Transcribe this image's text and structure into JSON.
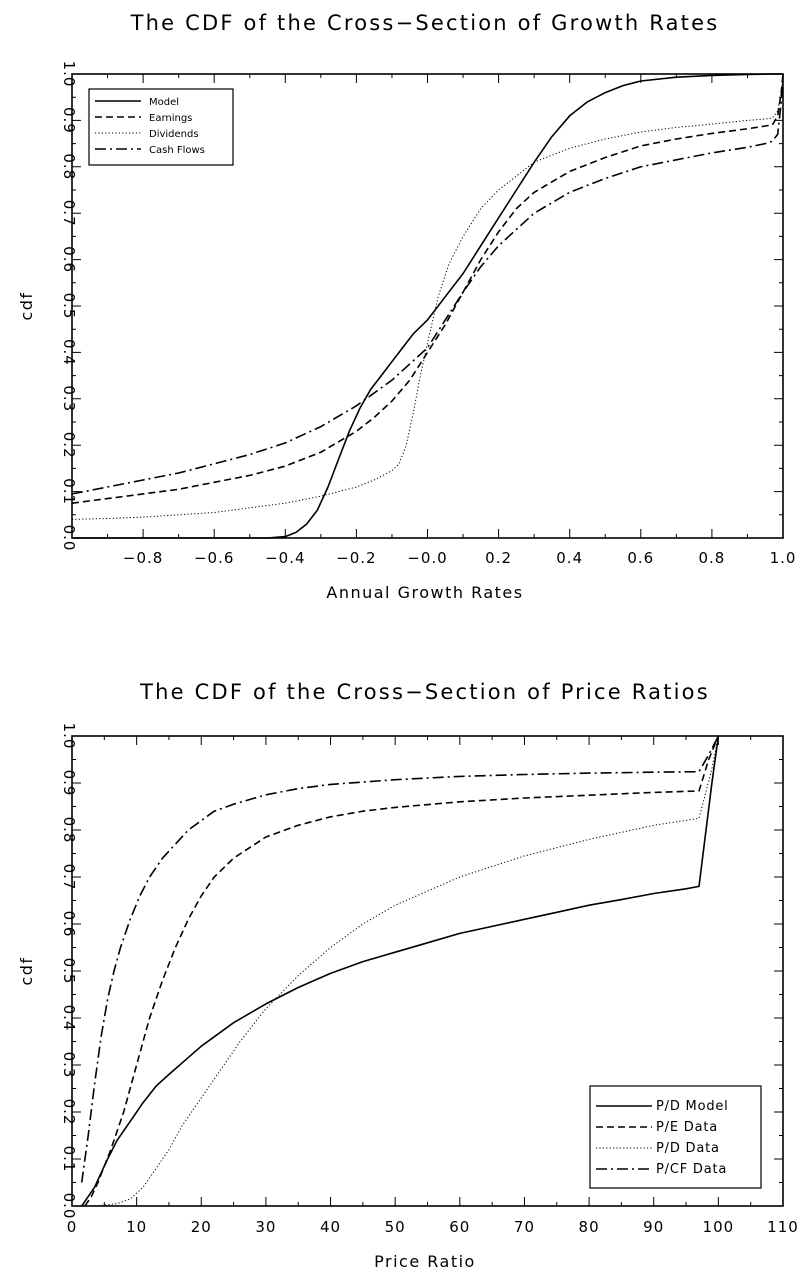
{
  "chart_data": [
    {
      "type": "line",
      "title": "The CDF of the Cross−Section of Growth Rates",
      "xlabel": "Annual Growth Rates",
      "ylabel": "cdf",
      "xlim": [
        -1.0,
        1.0
      ],
      "ylim": [
        0.0,
        1.0
      ],
      "xticks": [
        -0.8,
        -0.6,
        -0.4,
        -0.2,
        0.0,
        0.2,
        0.4,
        0.6,
        0.8,
        1.0
      ],
      "xtick_labels": [
        "−0.8",
        "−0.6",
        "−0.4",
        "−0.2",
        "−0.0",
        "0.2",
        "0.4",
        "0.6",
        "0.8",
        "1.0"
      ],
      "yticks": [
        0.0,
        0.1,
        0.2,
        0.3,
        0.4,
        0.5,
        0.6,
        0.7,
        0.8,
        0.9,
        1.0
      ],
      "ytick_labels": [
        "0.0",
        "0.1",
        "0.2",
        "0.3",
        "0.4",
        "0.5",
        "0.6",
        "0.7",
        "0.8",
        "0.9",
        "1.0"
      ],
      "grid": false,
      "legend": "top-left",
      "series": [
        {
          "name": "Model",
          "style": "solid",
          "x": [
            -1.0,
            -0.9,
            -0.8,
            -0.7,
            -0.6,
            -0.5,
            -0.45,
            -0.4,
            -0.37,
            -0.34,
            -0.31,
            -0.28,
            -0.25,
            -0.22,
            -0.19,
            -0.16,
            -0.13,
            -0.1,
            -0.07,
            -0.04,
            0.0,
            0.05,
            0.1,
            0.15,
            0.2,
            0.25,
            0.3,
            0.35,
            0.4,
            0.45,
            0.5,
            0.55,
            0.6,
            0.7,
            0.8,
            0.9,
            0.97,
            1.0
          ],
          "y": [
            0.0,
            0.0,
            0.0,
            0.0,
            0.0,
            0.0,
            0.0,
            0.003,
            0.012,
            0.03,
            0.06,
            0.11,
            0.17,
            0.23,
            0.28,
            0.32,
            0.35,
            0.38,
            0.41,
            0.44,
            0.47,
            0.52,
            0.57,
            0.63,
            0.69,
            0.75,
            0.81,
            0.865,
            0.91,
            0.94,
            0.96,
            0.975,
            0.985,
            0.993,
            0.997,
            0.999,
            1.0,
            1.0
          ]
        },
        {
          "name": "Earnings",
          "style": "dashed",
          "x": [
            -1.0,
            -0.9,
            -0.8,
            -0.7,
            -0.6,
            -0.5,
            -0.4,
            -0.3,
            -0.2,
            -0.15,
            -0.1,
            -0.05,
            0.0,
            0.05,
            0.1,
            0.15,
            0.2,
            0.25,
            0.3,
            0.4,
            0.5,
            0.6,
            0.7,
            0.8,
            0.9,
            0.95,
            0.97,
            0.985,
            0.995,
            1.0
          ],
          "y": [
            0.075,
            0.085,
            0.095,
            0.105,
            0.12,
            0.135,
            0.155,
            0.185,
            0.23,
            0.26,
            0.295,
            0.34,
            0.4,
            0.46,
            0.53,
            0.6,
            0.66,
            0.71,
            0.745,
            0.79,
            0.82,
            0.845,
            0.86,
            0.872,
            0.882,
            0.888,
            0.89,
            0.91,
            0.96,
            1.0
          ]
        },
        {
          "name": "Dividends",
          "style": "dotted",
          "x": [
            -1.0,
            -0.9,
            -0.8,
            -0.7,
            -0.6,
            -0.5,
            -0.4,
            -0.3,
            -0.2,
            -0.15,
            -0.1,
            -0.08,
            -0.06,
            -0.04,
            -0.02,
            0.0,
            0.03,
            0.06,
            0.1,
            0.15,
            0.2,
            0.25,
            0.3,
            0.4,
            0.5,
            0.6,
            0.7,
            0.8,
            0.9,
            0.95,
            0.97,
            0.985,
            0.995,
            1.0
          ],
          "y": [
            0.04,
            0.042,
            0.045,
            0.05,
            0.055,
            0.065,
            0.075,
            0.09,
            0.11,
            0.125,
            0.145,
            0.16,
            0.2,
            0.27,
            0.35,
            0.42,
            0.52,
            0.59,
            0.65,
            0.71,
            0.75,
            0.78,
            0.81,
            0.84,
            0.86,
            0.875,
            0.885,
            0.892,
            0.9,
            0.903,
            0.905,
            0.92,
            0.96,
            1.0
          ]
        },
        {
          "name": "Cash Flows",
          "style": "dashdot",
          "x": [
            -1.0,
            -0.9,
            -0.8,
            -0.7,
            -0.6,
            -0.5,
            -0.4,
            -0.3,
            -0.2,
            -0.1,
            0.0,
            0.05,
            0.1,
            0.15,
            0.2,
            0.25,
            0.3,
            0.4,
            0.5,
            0.6,
            0.7,
            0.8,
            0.9,
            0.95,
            0.97,
            0.985,
            0.995,
            1.0
          ],
          "y": [
            0.095,
            0.11,
            0.125,
            0.14,
            0.16,
            0.18,
            0.205,
            0.24,
            0.285,
            0.34,
            0.41,
            0.47,
            0.53,
            0.585,
            0.63,
            0.665,
            0.7,
            0.745,
            0.775,
            0.8,
            0.815,
            0.83,
            0.842,
            0.85,
            0.855,
            0.87,
            0.94,
            1.0
          ]
        }
      ]
    },
    {
      "type": "line",
      "title": "The CDF of the Cross−Section of Price Ratios",
      "xlabel": "Price Ratio",
      "ylabel": "cdf",
      "xlim": [
        0,
        110
      ],
      "ylim": [
        0.0,
        1.0
      ],
      "xticks": [
        0,
        10,
        20,
        30,
        40,
        50,
        60,
        70,
        80,
        90,
        100,
        110
      ],
      "xtick_labels": [
        "0",
        "10",
        "20",
        "30",
        "40",
        "50",
        "60",
        "70",
        "80",
        "90",
        "100",
        "110"
      ],
      "yticks": [
        0.0,
        0.1,
        0.2,
        0.3,
        0.4,
        0.5,
        0.6,
        0.7,
        0.8,
        0.9,
        1.0
      ],
      "ytick_labels": [
        "0.0",
        "0.1",
        "0.2",
        "0.3",
        "0.4",
        "0.5",
        "0.6",
        "0.7",
        "0.8",
        "0.9",
        "1.0"
      ],
      "grid": false,
      "legend": "bottom-right",
      "series": [
        {
          "name": "P/D Model",
          "style": "solid",
          "x": [
            1.5,
            2.5,
            3.5,
            4.5,
            5.5,
            7,
            9,
            11,
            13,
            15,
            17.5,
            20,
            25,
            30,
            35,
            40,
            45,
            50,
            55,
            60,
            65,
            70,
            75,
            80,
            85,
            90,
            95,
            97,
            99,
            100
          ],
          "y": [
            0.0,
            0.02,
            0.04,
            0.07,
            0.1,
            0.14,
            0.18,
            0.22,
            0.255,
            0.28,
            0.31,
            0.34,
            0.39,
            0.43,
            0.465,
            0.495,
            0.52,
            0.54,
            0.56,
            0.58,
            0.595,
            0.61,
            0.625,
            0.64,
            0.652,
            0.665,
            0.675,
            0.68,
            0.9,
            1.0
          ]
        },
        {
          "name": "P/E Data",
          "style": "dashed",
          "x": [
            2,
            3,
            4,
            6,
            8,
            10,
            12,
            14,
            16,
            18,
            20,
            22,
            25,
            30,
            35,
            40,
            45,
            50,
            60,
            70,
            80,
            90,
            97,
            98.5,
            100
          ],
          "y": [
            0.0,
            0.02,
            0.05,
            0.12,
            0.2,
            0.3,
            0.4,
            0.48,
            0.55,
            0.61,
            0.66,
            0.7,
            0.74,
            0.785,
            0.81,
            0.828,
            0.84,
            0.848,
            0.86,
            0.868,
            0.874,
            0.88,
            0.883,
            0.95,
            1.0
          ]
        },
        {
          "name": "P/D Data",
          "style": "dotted",
          "x": [
            3,
            5,
            7,
            9,
            11,
            13,
            15,
            17,
            20,
            23,
            26,
            30,
            35,
            40,
            45,
            50,
            60,
            70,
            80,
            90,
            97,
            99,
            100
          ],
          "y": [
            0.0,
            0.002,
            0.005,
            0.015,
            0.04,
            0.08,
            0.12,
            0.17,
            0.23,
            0.29,
            0.35,
            0.42,
            0.49,
            0.55,
            0.6,
            0.64,
            0.7,
            0.745,
            0.78,
            0.81,
            0.825,
            0.93,
            1.0
          ]
        },
        {
          "name": "P/CF Data",
          "style": "dashdot",
          "x": [
            1.5,
            2.5,
            3.5,
            4.5,
            5.5,
            6.5,
            7.5,
            9,
            10.5,
            12,
            14,
            16,
            18,
            20,
            22,
            25,
            30,
            35,
            40,
            50,
            60,
            70,
            80,
            90,
            97,
            98.5,
            100
          ],
          "y": [
            0.05,
            0.15,
            0.26,
            0.36,
            0.44,
            0.5,
            0.55,
            0.61,
            0.66,
            0.7,
            0.74,
            0.77,
            0.8,
            0.82,
            0.84,
            0.855,
            0.875,
            0.888,
            0.897,
            0.907,
            0.914,
            0.918,
            0.921,
            0.923,
            0.924,
            0.96,
            1.0
          ]
        }
      ]
    }
  ]
}
